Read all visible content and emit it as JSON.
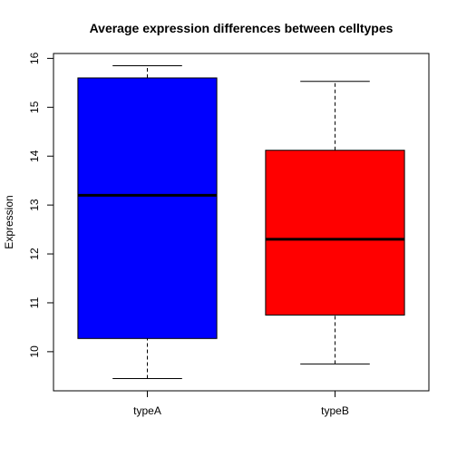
{
  "chart_data": {
    "type": "boxplot",
    "title": "Average expression differences between celltypes",
    "xlabel": "",
    "ylabel": "Expression",
    "ylim": [
      9.2,
      16.1
    ],
    "yticks": [
      10,
      11,
      12,
      13,
      14,
      15,
      16
    ],
    "categories": [
      "typeA",
      "typeB"
    ],
    "boxes": [
      {
        "category": "typeA",
        "min": 9.45,
        "q1": 10.27,
        "median": 13.2,
        "q3": 15.6,
        "max": 15.85,
        "color": "#0000ff"
      },
      {
        "category": "typeB",
        "min": 9.75,
        "q1": 10.75,
        "median": 12.3,
        "q3": 14.12,
        "max": 15.53,
        "color": "#ff0000"
      }
    ],
    "grid": false,
    "legend": "none"
  }
}
